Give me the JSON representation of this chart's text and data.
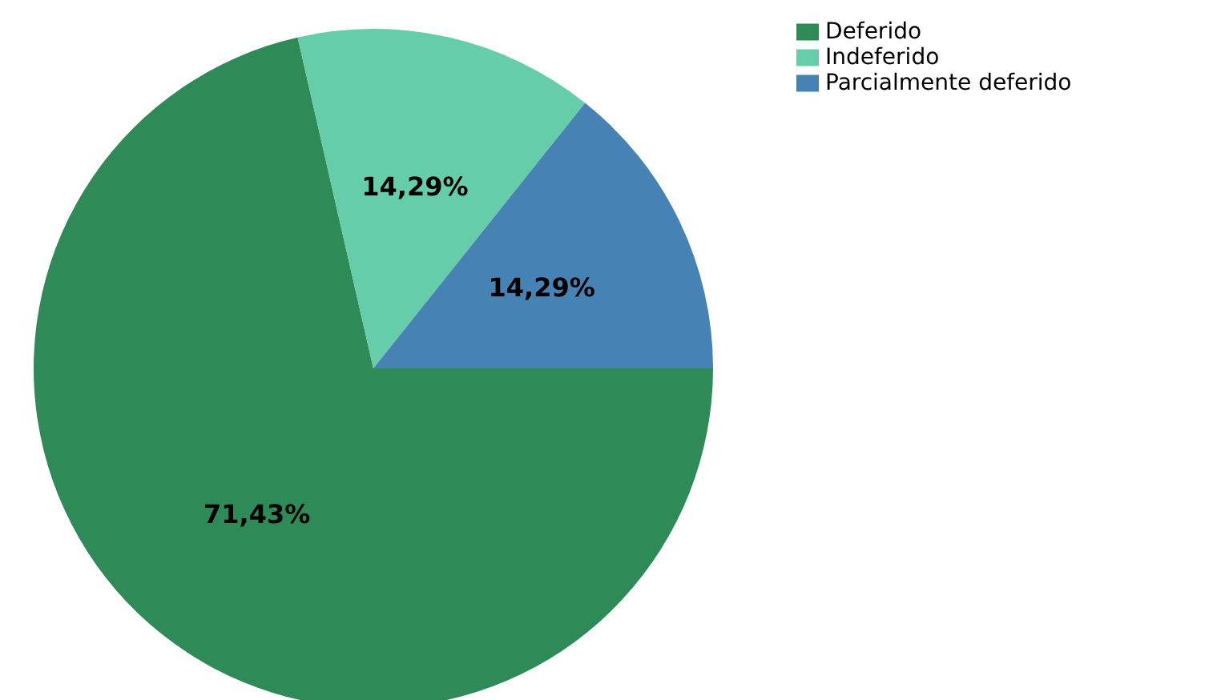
{
  "chart_data": {
    "type": "pie",
    "categories": [
      "Deferido",
      "Indeferido",
      "Parcialmente deferido"
    ],
    "values": [
      71.43,
      14.29,
      14.29
    ],
    "colors": [
      "#2e8b57",
      "#66cdaa",
      "#4682b4"
    ],
    "value_labels": [
      "71,43%",
      "14,29%",
      "14,29%"
    ],
    "legend": "top right"
  }
}
